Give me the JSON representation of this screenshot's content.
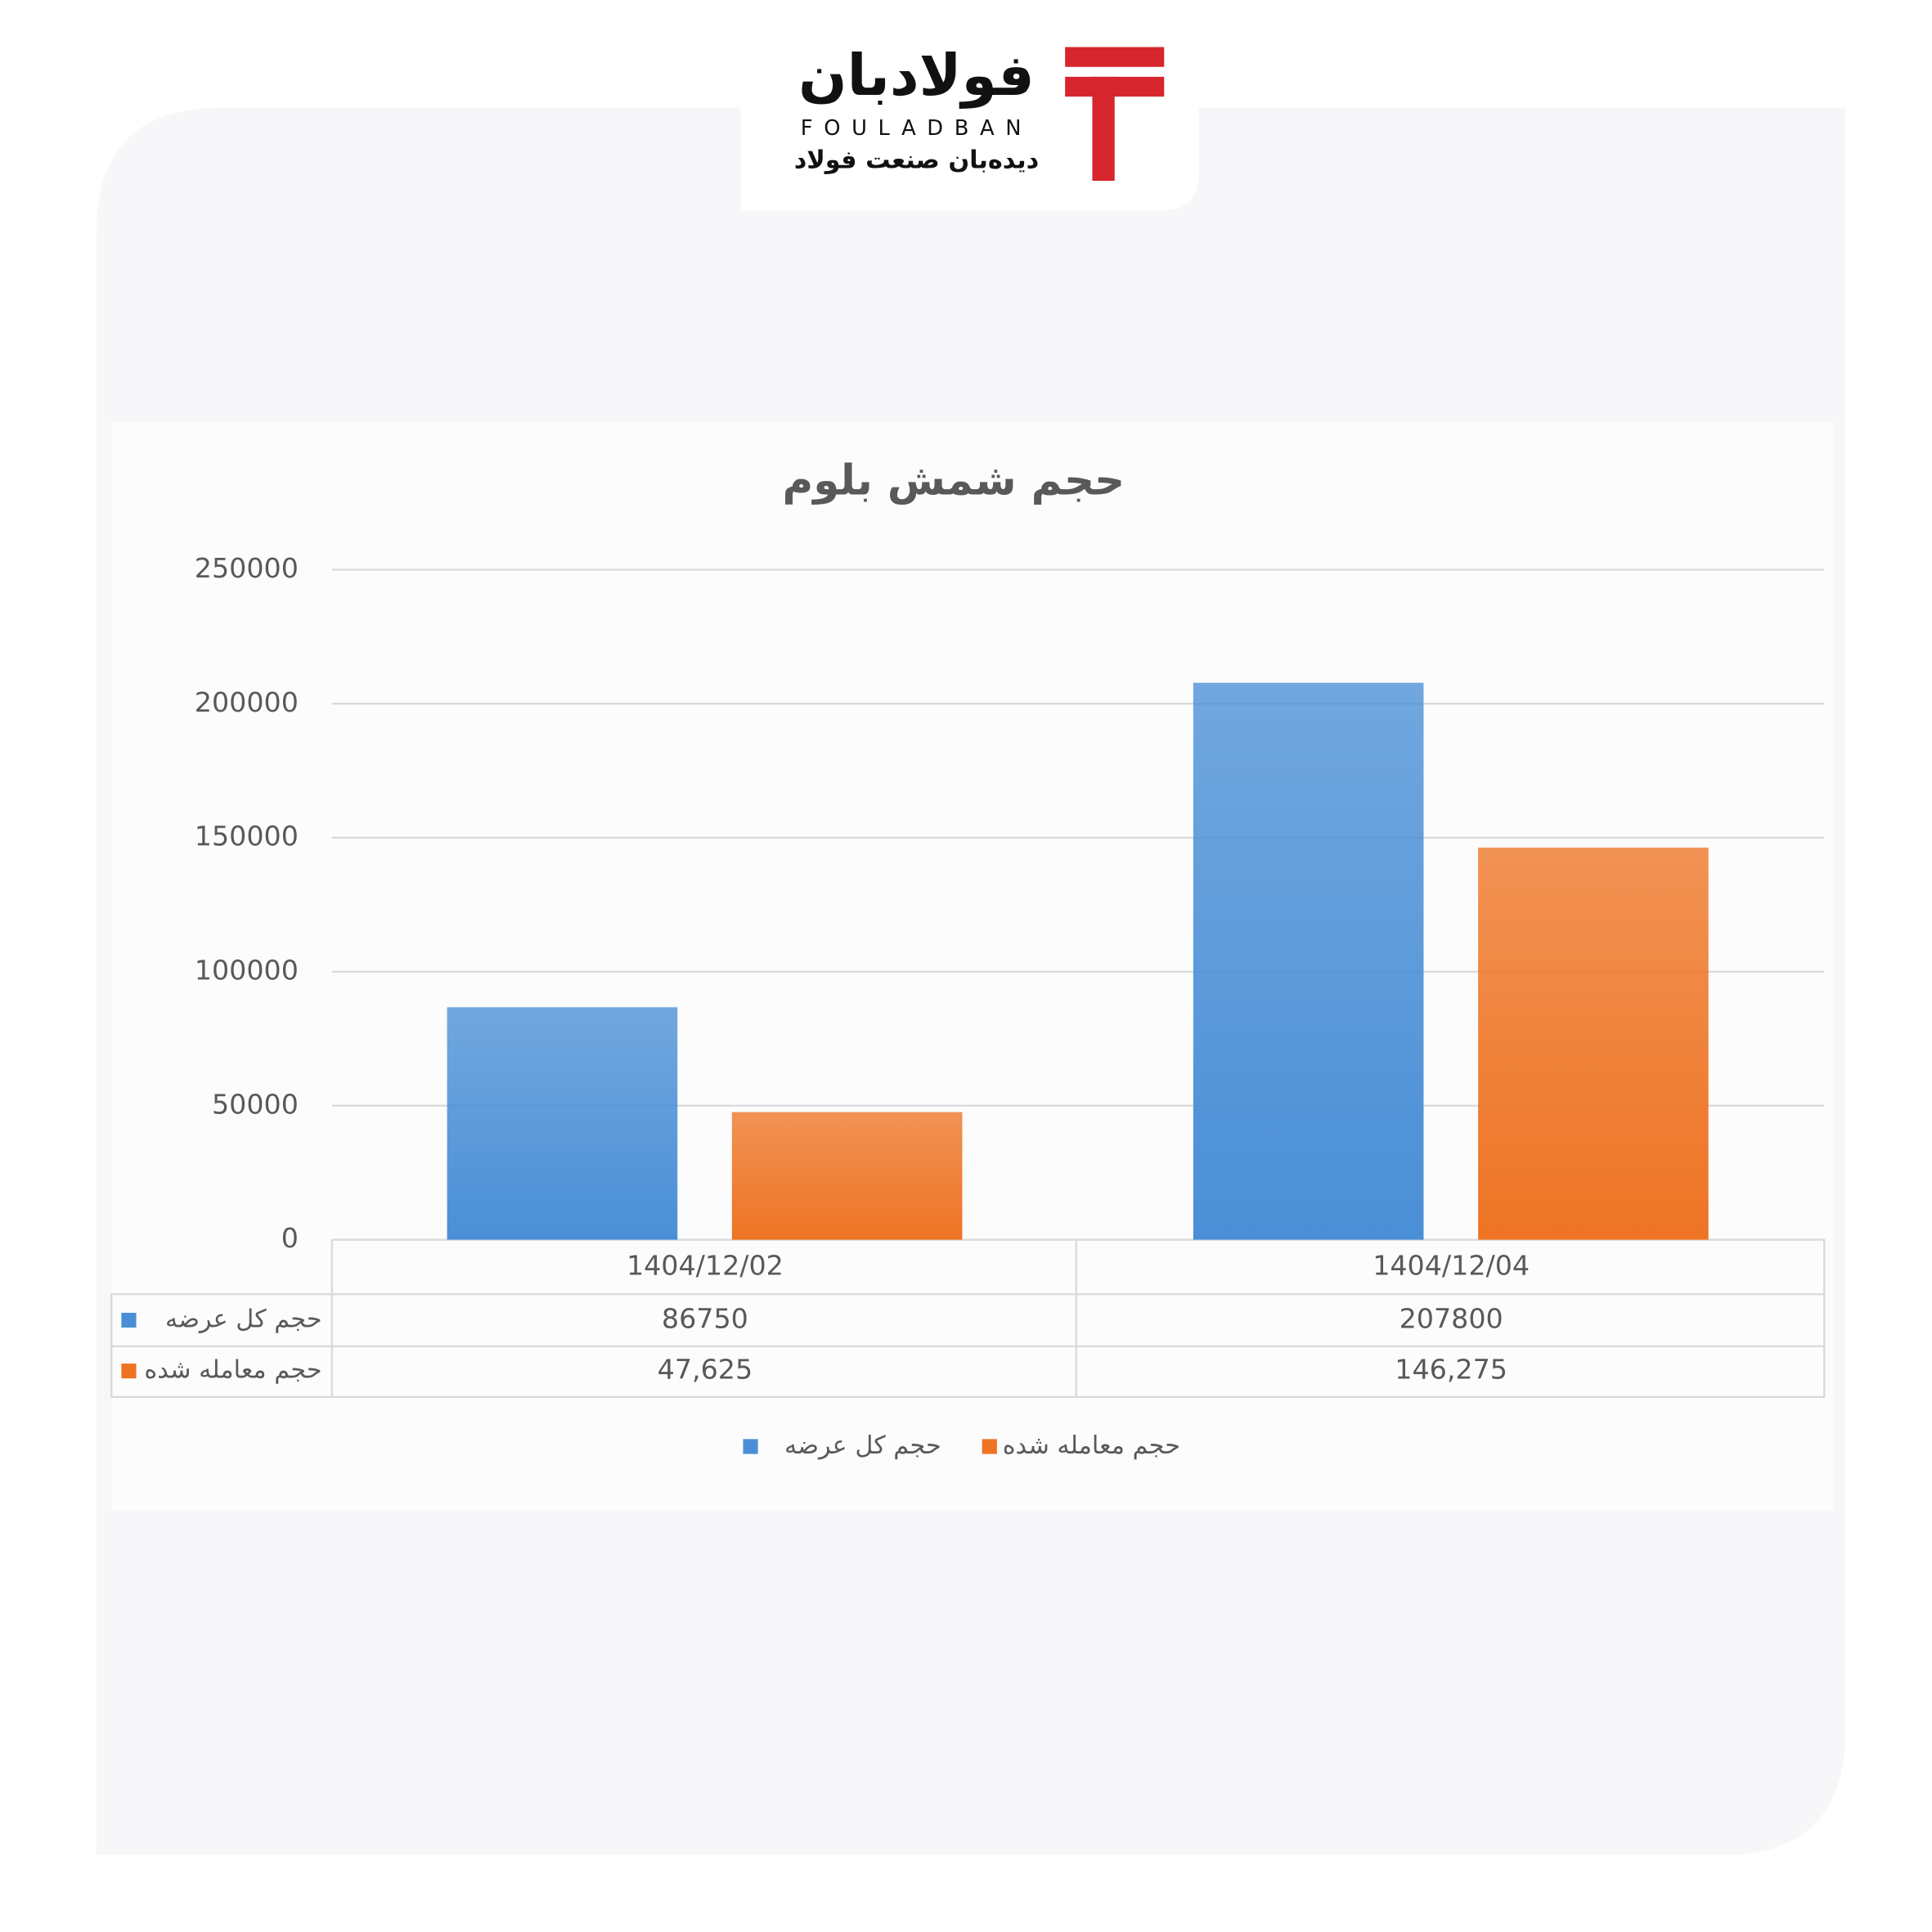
{
  "logo": {
    "name": "فولادبان",
    "latin": "FOULADBAN",
    "tagline": "دیده‌بان صنعت فولاد"
  },
  "chart_data": {
    "type": "bar",
    "title": "حجم شمش بلوم",
    "categories": [
      "1404/12/02",
      "1404/12/04"
    ],
    "series": [
      {
        "name": "حجم کل عرضه",
        "color": "#4a8fd6",
        "values": [
          86750,
          207800
        ]
      },
      {
        "name": "حجم معامله شده",
        "color": "#ee7424",
        "values": [
          47625,
          146275
        ],
        "value_labels": [
          "47,625",
          "146,275"
        ]
      }
    ],
    "ylim": [
      0,
      250000
    ],
    "yticks": [
      0,
      50000,
      100000,
      150000,
      200000,
      250000
    ],
    "grid": true
  }
}
